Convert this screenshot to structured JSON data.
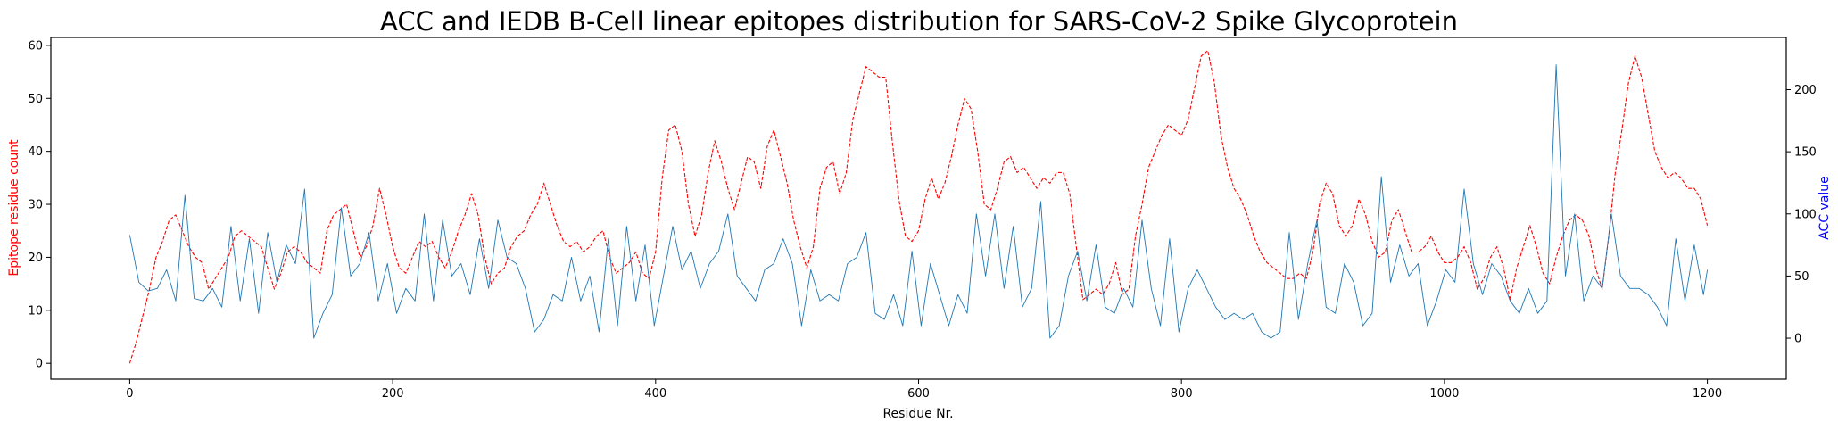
{
  "chart_data": {
    "type": "line",
    "title": "ACC and IEDB B-Cell linear epitopes distribution for SARS-CoV-2 Spike Glycoprotein",
    "xlabel": "Residue Nr.",
    "ylabel_left": "Epitope residue count",
    "ylabel_right": "ACC value",
    "xlim": [
      -60,
      1260
    ],
    "ylim_left": [
      -3,
      61.5
    ],
    "ylim_right": [
      -33,
      242
    ],
    "xticks": [
      0,
      200,
      400,
      600,
      800,
      1000,
      1200
    ],
    "yticks_left": [
      0,
      10,
      20,
      30,
      40,
      50,
      60
    ],
    "yticks_right": [
      0,
      50,
      100,
      150,
      200
    ],
    "grid": false,
    "colors": {
      "epitope": "#ff0000",
      "acc": "#1f77b4",
      "left_label": "#ff0000",
      "right_label": "#0000ff"
    },
    "series": [
      {
        "axis": "left",
        "style": "dashed",
        "color": "#ff0000",
        "x": [
          0,
          5,
          10,
          15,
          20,
          25,
          30,
          35,
          40,
          45,
          50,
          55,
          60,
          65,
          70,
          75,
          80,
          85,
          90,
          95,
          100,
          105,
          110,
          115,
          120,
          125,
          130,
          135,
          140,
          145,
          150,
          155,
          160,
          165,
          170,
          175,
          180,
          185,
          190,
          195,
          200,
          205,
          210,
          215,
          220,
          225,
          230,
          235,
          240,
          245,
          250,
          255,
          260,
          265,
          270,
          275,
          280,
          285,
          290,
          295,
          300,
          305,
          310,
          315,
          320,
          325,
          330,
          335,
          340,
          345,
          350,
          355,
          360,
          365,
          370,
          375,
          380,
          385,
          390,
          395,
          400,
          405,
          410,
          415,
          420,
          425,
          430,
          435,
          440,
          445,
          450,
          455,
          460,
          465,
          470,
          475,
          480,
          485,
          490,
          495,
          500,
          505,
          510,
          515,
          520,
          525,
          530,
          535,
          540,
          545,
          550,
          555,
          560,
          565,
          570,
          575,
          580,
          585,
          590,
          595,
          600,
          605,
          610,
          615,
          620,
          625,
          630,
          635,
          640,
          645,
          650,
          655,
          660,
          665,
          670,
          675,
          680,
          685,
          690,
          695,
          700,
          705,
          710,
          715,
          720,
          725,
          730,
          735,
          740,
          745,
          750,
          755,
          760,
          765,
          770,
          775,
          780,
          785,
          790,
          795,
          800,
          805,
          810,
          815,
          820,
          825,
          830,
          835,
          840,
          845,
          850,
          855,
          860,
          865,
          870,
          875,
          880,
          885,
          890,
          895,
          900,
          905,
          910,
          915,
          920,
          925,
          930,
          935,
          940,
          945,
          950,
          955,
          960,
          965,
          970,
          975,
          980,
          985,
          990,
          995,
          1000,
          1005,
          1010,
          1015,
          1020,
          1025,
          1030,
          1035,
          1040,
          1045,
          1050,
          1055,
          1060,
          1065,
          1070,
          1075,
          1080,
          1085,
          1090,
          1095,
          1100,
          1105,
          1110,
          1115,
          1120,
          1125,
          1130,
          1135,
          1140,
          1145,
          1150,
          1155,
          1160,
          1165,
          1170,
          1175,
          1180,
          1185,
          1190,
          1195,
          1200
        ],
        "values": [
          0,
          4,
          9,
          14,
          20,
          23,
          27,
          28,
          25,
          22,
          20,
          19,
          14,
          16,
          18,
          20,
          24,
          25,
          24,
          23,
          22,
          18,
          14,
          17,
          21,
          22,
          21,
          19,
          18,
          17,
          25,
          28,
          29,
          30,
          25,
          20,
          22,
          26,
          33,
          28,
          22,
          18,
          17,
          20,
          23,
          22,
          23,
          20,
          18,
          21,
          25,
          28,
          32,
          28,
          20,
          15,
          17,
          18,
          22,
          24,
          25,
          28,
          30,
          34,
          30,
          26,
          23,
          22,
          23,
          21,
          22,
          24,
          25,
          20,
          17,
          18,
          19,
          21,
          17,
          16,
          21,
          35,
          44,
          45,
          40,
          30,
          24,
          28,
          36,
          42,
          38,
          33,
          29,
          34,
          39,
          38,
          33,
          41,
          44,
          39,
          34,
          27,
          22,
          18,
          22,
          33,
          37,
          38,
          32,
          36,
          46,
          51,
          56,
          55,
          54,
          54,
          42,
          31,
          24,
          23,
          25,
          31,
          35,
          31,
          34,
          39,
          45,
          50,
          48,
          40,
          30,
          29,
          33,
          38,
          39,
          36,
          37,
          35,
          33,
          35,
          34,
          36,
          36,
          32,
          22,
          12,
          13,
          14,
          13,
          15,
          19,
          13,
          14,
          24,
          30,
          37,
          40,
          43,
          45,
          44,
          43,
          46,
          52,
          58,
          59,
          53,
          43,
          37,
          33,
          31,
          28,
          24,
          21,
          19,
          18,
          17,
          16,
          16,
          17,
          16,
          21,
          30,
          34,
          32,
          26,
          24,
          26,
          31,
          28,
          23,
          20,
          21,
          27,
          29,
          25,
          21,
          21,
          22,
          24,
          21,
          19,
          19,
          20,
          22,
          19,
          14,
          16,
          20,
          22,
          18,
          12,
          18,
          22,
          26,
          22,
          17,
          15,
          20,
          24,
          27,
          28,
          27,
          24,
          18,
          14,
          24,
          36,
          44,
          53,
          58,
          54,
          47,
          40,
          37,
          35,
          36,
          35,
          33,
          33,
          31,
          26
        ]
      },
      {
        "axis": "right",
        "style": "solid",
        "color": "#1f77b4",
        "x": [
          0,
          7,
          14,
          21,
          28,
          35,
          42,
          49,
          56,
          63,
          70,
          77,
          84,
          91,
          98,
          105,
          112,
          119,
          126,
          133,
          140,
          147,
          154,
          161,
          168,
          175,
          182,
          189,
          196,
          203,
          210,
          217,
          224,
          231,
          238,
          245,
          252,
          259,
          266,
          273,
          280,
          287,
          294,
          301,
          308,
          315,
          322,
          329,
          336,
          343,
          350,
          357,
          364,
          371,
          378,
          385,
          392,
          399,
          406,
          413,
          420,
          427,
          434,
          441,
          448,
          455,
          462,
          469,
          476,
          483,
          490,
          497,
          504,
          511,
          518,
          525,
          532,
          539,
          546,
          553,
          560,
          567,
          574,
          581,
          588,
          595,
          602,
          609,
          616,
          623,
          630,
          637,
          644,
          651,
          658,
          665,
          672,
          679,
          686,
          693,
          700,
          707,
          714,
          721,
          728,
          735,
          742,
          749,
          756,
          763,
          770,
          777,
          784,
          791,
          798,
          805,
          812,
          819,
          826,
          833,
          840,
          847,
          854,
          861,
          868,
          875,
          882,
          889,
          896,
          903,
          910,
          917,
          924,
          931,
          938,
          945,
          952,
          959,
          966,
          973,
          980,
          987,
          994,
          1001,
          1008,
          1015,
          1022,
          1029,
          1036,
          1043,
          1050,
          1057,
          1064,
          1071,
          1078,
          1085,
          1092,
          1099,
          1106,
          1113,
          1120,
          1127,
          1134,
          1141,
          1148,
          1155,
          1162,
          1169,
          1176,
          1183,
          1190,
          1197,
          1200
        ],
        "values": [
          83,
          45,
          38,
          40,
          55,
          30,
          115,
          32,
          30,
          40,
          25,
          90,
          30,
          80,
          20,
          85,
          45,
          75,
          60,
          120,
          0,
          20,
          35,
          105,
          50,
          60,
          85,
          30,
          60,
          20,
          40,
          30,
          100,
          30,
          95,
          50,
          60,
          35,
          80,
          40,
          95,
          65,
          60,
          40,
          5,
          15,
          35,
          30,
          65,
          30,
          50,
          5,
          80,
          10,
          90,
          30,
          75,
          10,
          50,
          90,
          55,
          70,
          40,
          60,
          70,
          100,
          50,
          40,
          30,
          55,
          60,
          80,
          60,
          10,
          55,
          30,
          35,
          30,
          60,
          65,
          85,
          20,
          15,
          35,
          10,
          70,
          10,
          60,
          35,
          10,
          35,
          20,
          100,
          50,
          100,
          40,
          90,
          25,
          40,
          110,
          0,
          10,
          50,
          70,
          30,
          75,
          25,
          20,
          40,
          25,
          95,
          40,
          10,
          80,
          5,
          40,
          55,
          40,
          25,
          15,
          20,
          15,
          20,
          5,
          0,
          5,
          85,
          15,
          60,
          95,
          25,
          20,
          60,
          45,
          10,
          20,
          130,
          45,
          75,
          50,
          60,
          10,
          30,
          55,
          45,
          120,
          60,
          35,
          60,
          50,
          30,
          20,
          40,
          20,
          30,
          220,
          50,
          100,
          30,
          50,
          40,
          100,
          50,
          40,
          40,
          35,
          25,
          10,
          80,
          30,
          75,
          35,
          55
        ]
      }
    ]
  }
}
